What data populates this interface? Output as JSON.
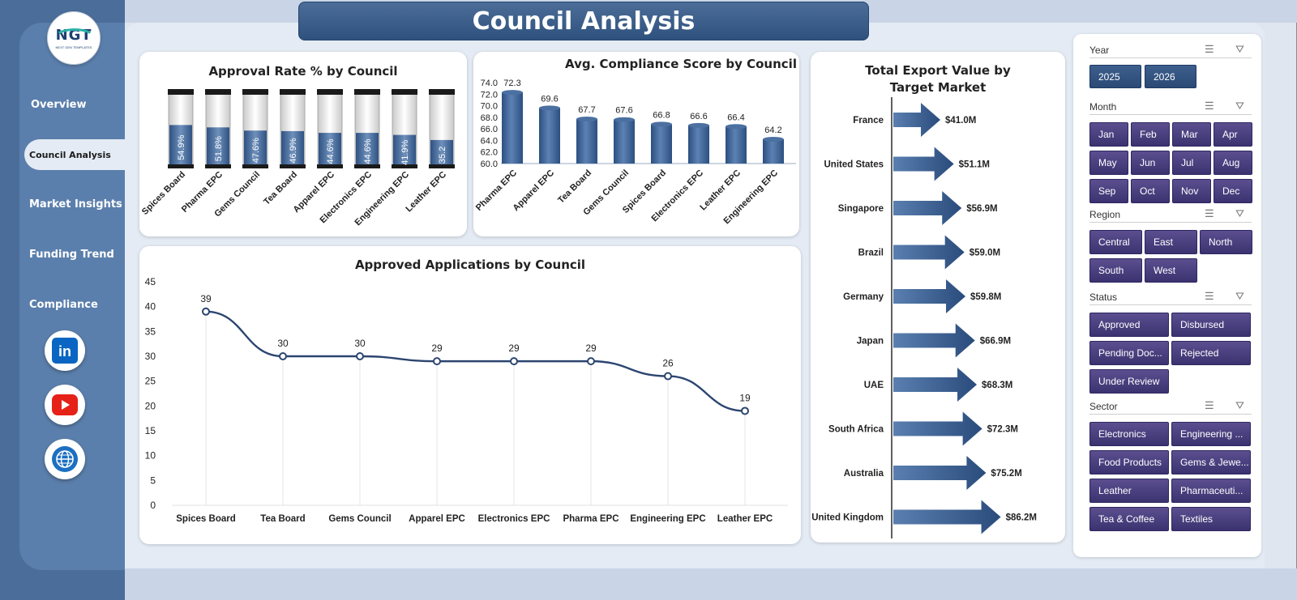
{
  "title": "Council Analysis",
  "logo": {
    "text": "NGT",
    "sub": "NEXT GEN TEMPLATES"
  },
  "sidebar": {
    "items": [
      {
        "label": "Overview"
      },
      {
        "label": "Council Analysis",
        "active": true
      },
      {
        "label": "Market Insights"
      },
      {
        "label": "Funding Trend"
      },
      {
        "label": "Compliance"
      }
    ],
    "social": [
      "linkedin-icon",
      "youtube-icon",
      "globe-icon"
    ]
  },
  "colors": {
    "primary": "#2f517d",
    "bar": "#3f6595",
    "slicer_button": "#463c7e"
  },
  "chart_data": [
    {
      "type": "bar",
      "title": "Approval Rate % by Council",
      "categories": [
        "Spices Board",
        "Pharma EPC",
        "Gems Council",
        "Tea Board",
        "Apparel EPC",
        "Electronics EPC",
        "Engineering EPC",
        "Leather EPC"
      ],
      "values": [
        54.9,
        51.8,
        47.6,
        46.9,
        44.6,
        44.6,
        41.9,
        35.2
      ],
      "labels": [
        "54.9%",
        "51.8%",
        "47.6%",
        "46.9%",
        "44.6%",
        "44.6%",
        "41.9%",
        "35.2"
      ],
      "ylim": [
        0,
        100
      ]
    },
    {
      "type": "bar",
      "title": "Avg. Compliance Score by Council",
      "categories": [
        "Pharma EPC",
        "Apparel EPC",
        "Tea Board",
        "Gems Council",
        "Spices Board",
        "Electronics EPC",
        "Leather EPC",
        "Engineering EPC"
      ],
      "values": [
        72.3,
        69.6,
        67.7,
        67.6,
        66.8,
        66.6,
        66.4,
        64.2
      ],
      "labels": [
        "72.3",
        "69.6",
        "67.7",
        "67.6",
        "66.8",
        "66.6",
        "66.4",
        "64.2"
      ],
      "yticks": [
        "74.0",
        "72.0",
        "70.0",
        "68.0",
        "66.0",
        "64.0",
        "62.0",
        "60.0"
      ],
      "ylim": [
        60,
        74
      ]
    },
    {
      "type": "line",
      "title": "Approved Applications by Council",
      "categories": [
        "Spices Board",
        "Tea Board",
        "Gems Council",
        "Apparel EPC",
        "Electronics EPC",
        "Pharma EPC",
        "Engineering EPC",
        "Leather EPC"
      ],
      "values": [
        39,
        30,
        30,
        29,
        29,
        29,
        26,
        19
      ],
      "labels": [
        "39",
        "30",
        "30",
        "29",
        "29",
        "29",
        "26",
        "19"
      ],
      "yticks": [
        "45",
        "40",
        "35",
        "30",
        "25",
        "20",
        "15",
        "10",
        "5",
        "0"
      ],
      "ylim": [
        0,
        45
      ]
    },
    {
      "type": "bar",
      "title": "Total Export Value by Target Market",
      "categories": [
        "France",
        "United States",
        "Singapore",
        "Brazil",
        "Germany",
        "Japan",
        "UAE",
        "South Africa",
        "Australia",
        "United Kingdom"
      ],
      "values": [
        41.0,
        51.1,
        56.9,
        59.0,
        59.8,
        66.9,
        68.3,
        72.3,
        75.2,
        86.2
      ],
      "labels": [
        "$41.0M",
        "$51.1M",
        "$56.9M",
        "$59.0M",
        "$59.8M",
        "$66.9M",
        "$68.3M",
        "$72.3M",
        "$75.2M",
        "$86.2M"
      ],
      "ylim": [
        0,
        90
      ]
    }
  ],
  "slicers": {
    "year": {
      "label": "Year",
      "options": [
        "2025",
        "2026"
      ]
    },
    "month": {
      "label": "Month",
      "options": [
        "Jan",
        "Feb",
        "Mar",
        "Apr",
        "May",
        "Jun",
        "Jul",
        "Aug",
        "Sep",
        "Oct",
        "Nov",
        "Dec"
      ]
    },
    "region": {
      "label": "Region",
      "options": [
        "Central",
        "East",
        "North",
        "South",
        "West"
      ]
    },
    "status": {
      "label": "Status",
      "options": [
        "Approved",
        "Disbursed",
        "Pending Doc...",
        "Rejected",
        "Under Review"
      ]
    },
    "sector": {
      "label": "Sector",
      "options": [
        "Electronics",
        "Engineering ...",
        "Food Products",
        "Gems & Jewe...",
        "Leather",
        "Pharmaceuti...",
        "Tea & Coffee",
        "Textiles"
      ]
    }
  }
}
